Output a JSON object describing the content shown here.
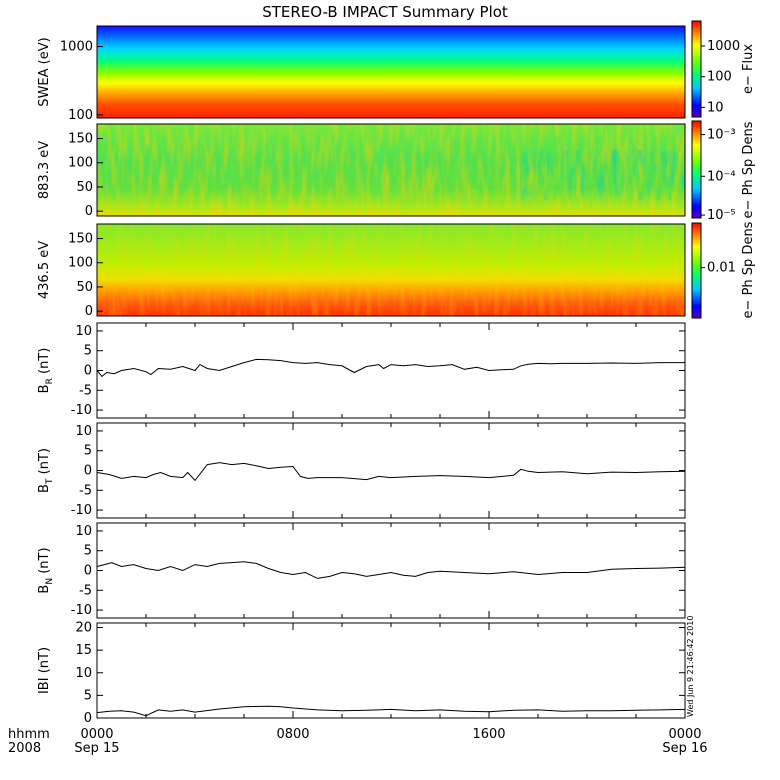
{
  "chart_data": {
    "type": "multi-panel time series",
    "title": "STEREO-B IMPACT Summary Plot",
    "year_label": "2008",
    "time_format_label": "hhmm",
    "x_hours": [
      0,
      24
    ],
    "xticks": [
      {
        "hour": 0,
        "time": "0000",
        "date": "Sep 15"
      },
      {
        "hour": 8,
        "time": "0800",
        "date": ""
      },
      {
        "hour": 16,
        "time": "1600",
        "date": ""
      },
      {
        "hour": 24,
        "time": "0000",
        "date": "Sep 16"
      }
    ],
    "timestamp_label": "Wed Jun 9 21:46:42 2010",
    "spectrograms": [
      {
        "name": "swea",
        "ylabel": "SWEA (eV)",
        "yscale": "log",
        "ylim": [
          90,
          2000
        ],
        "yticks": [
          {
            "v": 100,
            "label": "100"
          },
          {
            "v": 1000,
            "label": "1000"
          }
        ],
        "cbar_label": "e− Flux",
        "cbar_ticks": [
          {
            "frac": 0.1,
            "label": "10"
          },
          {
            "frac": 0.42,
            "label": "100"
          },
          {
            "frac": 0.74,
            "label": "1000"
          }
        ]
      },
      {
        "name": "pad883",
        "ylabel": "883.3 eV",
        "yscale": "linear",
        "ylim": [
          -10,
          180
        ],
        "yticks": [
          {
            "v": 0,
            "label": "0"
          },
          {
            "v": 50,
            "label": "50"
          },
          {
            "v": 100,
            "label": "100"
          },
          {
            "v": 150,
            "label": "150"
          }
        ],
        "cbar_label": "e− Ph Sp Dens",
        "cbar_ticks": [
          {
            "frac": 0.03,
            "label": "10⁻⁵"
          },
          {
            "frac": 0.43,
            "label": "10⁻⁴"
          },
          {
            "frac": 0.86,
            "label": "10⁻³"
          }
        ]
      },
      {
        "name": "pad436",
        "ylabel": "436.5 eV",
        "yscale": "linear",
        "ylim": [
          -10,
          180
        ],
        "yticks": [
          {
            "v": 0,
            "label": "0"
          },
          {
            "v": 50,
            "label": "50"
          },
          {
            "v": 100,
            "label": "100"
          },
          {
            "v": 150,
            "label": "150"
          }
        ],
        "cbar_label": "e− Ph Sp Dens",
        "cbar_ticks": [
          {
            "frac": 0.53,
            "label": "0.01"
          }
        ]
      }
    ],
    "line_panels": [
      {
        "name": "BR",
        "ylabel": "B",
        "ysub": "R",
        "yunit": "(nT)",
        "ylim": [
          -12,
          12
        ],
        "yticks": [
          -10,
          -5,
          0,
          5,
          10
        ],
        "x": [
          0,
          0.2,
          0.4,
          0.7,
          1.0,
          1.5,
          2.0,
          2.2,
          2.5,
          3.0,
          3.5,
          4.0,
          4.2,
          4.5,
          5.0,
          5.5,
          6.0,
          6.5,
          7.0,
          7.5,
          8.0,
          8.5,
          9.0,
          9.5,
          10.0,
          10.2,
          10.5,
          11.0,
          11.5,
          11.7,
          12.0,
          12.5,
          13.0,
          13.5,
          14.0,
          14.5,
          15.0,
          15.5,
          16.0,
          16.5,
          17.0,
          17.3,
          17.6,
          18.0,
          18.5,
          19.0,
          20.0,
          21.0,
          22.0,
          23.0,
          24.0
        ],
        "y": [
          0,
          -1.5,
          -0.5,
          -0.8,
          0,
          0.5,
          -0.3,
          -1,
          0.5,
          0.3,
          1,
          0,
          1.5,
          0.5,
          0,
          1,
          2,
          2.8,
          2.7,
          2.5,
          2,
          1.8,
          2,
          1.5,
          1.2,
          0.5,
          -0.5,
          1,
          1.5,
          0.5,
          1.5,
          1.2,
          1.5,
          1,
          1.2,
          1.5,
          0.3,
          0.8,
          0,
          0.2,
          0.3,
          1.2,
          1.6,
          1.8,
          1.7,
          1.8,
          1.8,
          1.9,
          1.8,
          2,
          2
        ]
      },
      {
        "name": "BT",
        "ylabel": "B",
        "ysub": "T",
        "yunit": "(nT)",
        "ylim": [
          -12,
          12
        ],
        "yticks": [
          -10,
          -5,
          0,
          5,
          10
        ],
        "x": [
          0,
          0.5,
          1.0,
          1.5,
          2.0,
          2.3,
          2.6,
          3.0,
          3.5,
          3.7,
          4.0,
          4.5,
          5.0,
          5.5,
          6.0,
          6.5,
          7.0,
          7.5,
          8.0,
          8.3,
          8.6,
          9.0,
          10.0,
          11.0,
          11.5,
          12.0,
          13.0,
          14.0,
          15.0,
          16.0,
          17.0,
          17.3,
          17.6,
          18.0,
          19.0,
          20.0,
          21.0,
          22.0,
          23.0,
          24.0
        ],
        "y": [
          -0.5,
          -1,
          -2,
          -1.5,
          -1.8,
          -1,
          -0.5,
          -1.5,
          -1.8,
          -0.5,
          -2.5,
          1.5,
          2,
          1.5,
          1.8,
          1.2,
          0.5,
          0.8,
          1,
          -1.5,
          -2,
          -1.8,
          -1.8,
          -2.3,
          -1.5,
          -1.8,
          -1.5,
          -1.3,
          -1.5,
          -1.8,
          -1.2,
          0.3,
          -0.2,
          -0.5,
          -0.3,
          -0.8,
          -0.4,
          -0.5,
          -0.3,
          -0.2
        ]
      },
      {
        "name": "BN",
        "ylabel": "B",
        "ysub": "N",
        "yunit": "(nT)",
        "ylim": [
          -12,
          12
        ],
        "yticks": [
          -10,
          -5,
          0,
          5,
          10
        ],
        "x": [
          0,
          0.3,
          0.6,
          1.0,
          1.5,
          2.0,
          2.5,
          3.0,
          3.5,
          4.0,
          4.5,
          5.0,
          5.5,
          6.0,
          6.5,
          7.0,
          7.5,
          8.0,
          8.5,
          9.0,
          9.5,
          10.0,
          10.5,
          11.0,
          11.5,
          12.0,
          12.5,
          13.0,
          13.5,
          14.0,
          15.0,
          16.0,
          17.0,
          18.0,
          19.0,
          20.0,
          21.0,
          22.0,
          23.0,
          24.0
        ],
        "y": [
          1,
          1.5,
          2,
          1,
          1.5,
          0.5,
          0,
          1,
          0,
          1.5,
          1,
          1.8,
          2,
          2.2,
          1.8,
          0.5,
          -0.5,
          -1,
          -0.5,
          -2,
          -1.5,
          -0.5,
          -0.8,
          -1.5,
          -1,
          -0.5,
          -1.2,
          -1.5,
          -0.5,
          -0.2,
          -0.5,
          -0.8,
          -0.3,
          -1,
          -0.5,
          -0.5,
          0.3,
          0.5,
          0.6,
          0.8
        ]
      },
      {
        "name": "Bmag",
        "ylabel": "IBI",
        "ysub": "",
        "yunit": "(nT)",
        "ylim": [
          0,
          21
        ],
        "yticks": [
          0,
          5,
          10,
          15,
          20
        ],
        "x": [
          0,
          0.5,
          1.0,
          1.5,
          2.0,
          2.5,
          3.0,
          3.5,
          4.0,
          5.0,
          6.0,
          7.0,
          7.5,
          8.0,
          9.0,
          10.0,
          11.0,
          12.0,
          13.0,
          14.0,
          15.0,
          16.0,
          17.0,
          18.0,
          19.0,
          20.0,
          21.0,
          22.0,
          23.0,
          24.0
        ],
        "y": [
          1.2,
          1.5,
          1.6,
          1.3,
          0.5,
          1.8,
          1.5,
          1.8,
          1.3,
          2,
          2.5,
          2.6,
          2.5,
          2.2,
          1.8,
          1.6,
          1.7,
          1.9,
          1.6,
          1.8,
          1.5,
          1.4,
          1.7,
          1.8,
          1.5,
          1.6,
          1.6,
          1.7,
          1.8,
          1.9
        ]
      }
    ]
  }
}
